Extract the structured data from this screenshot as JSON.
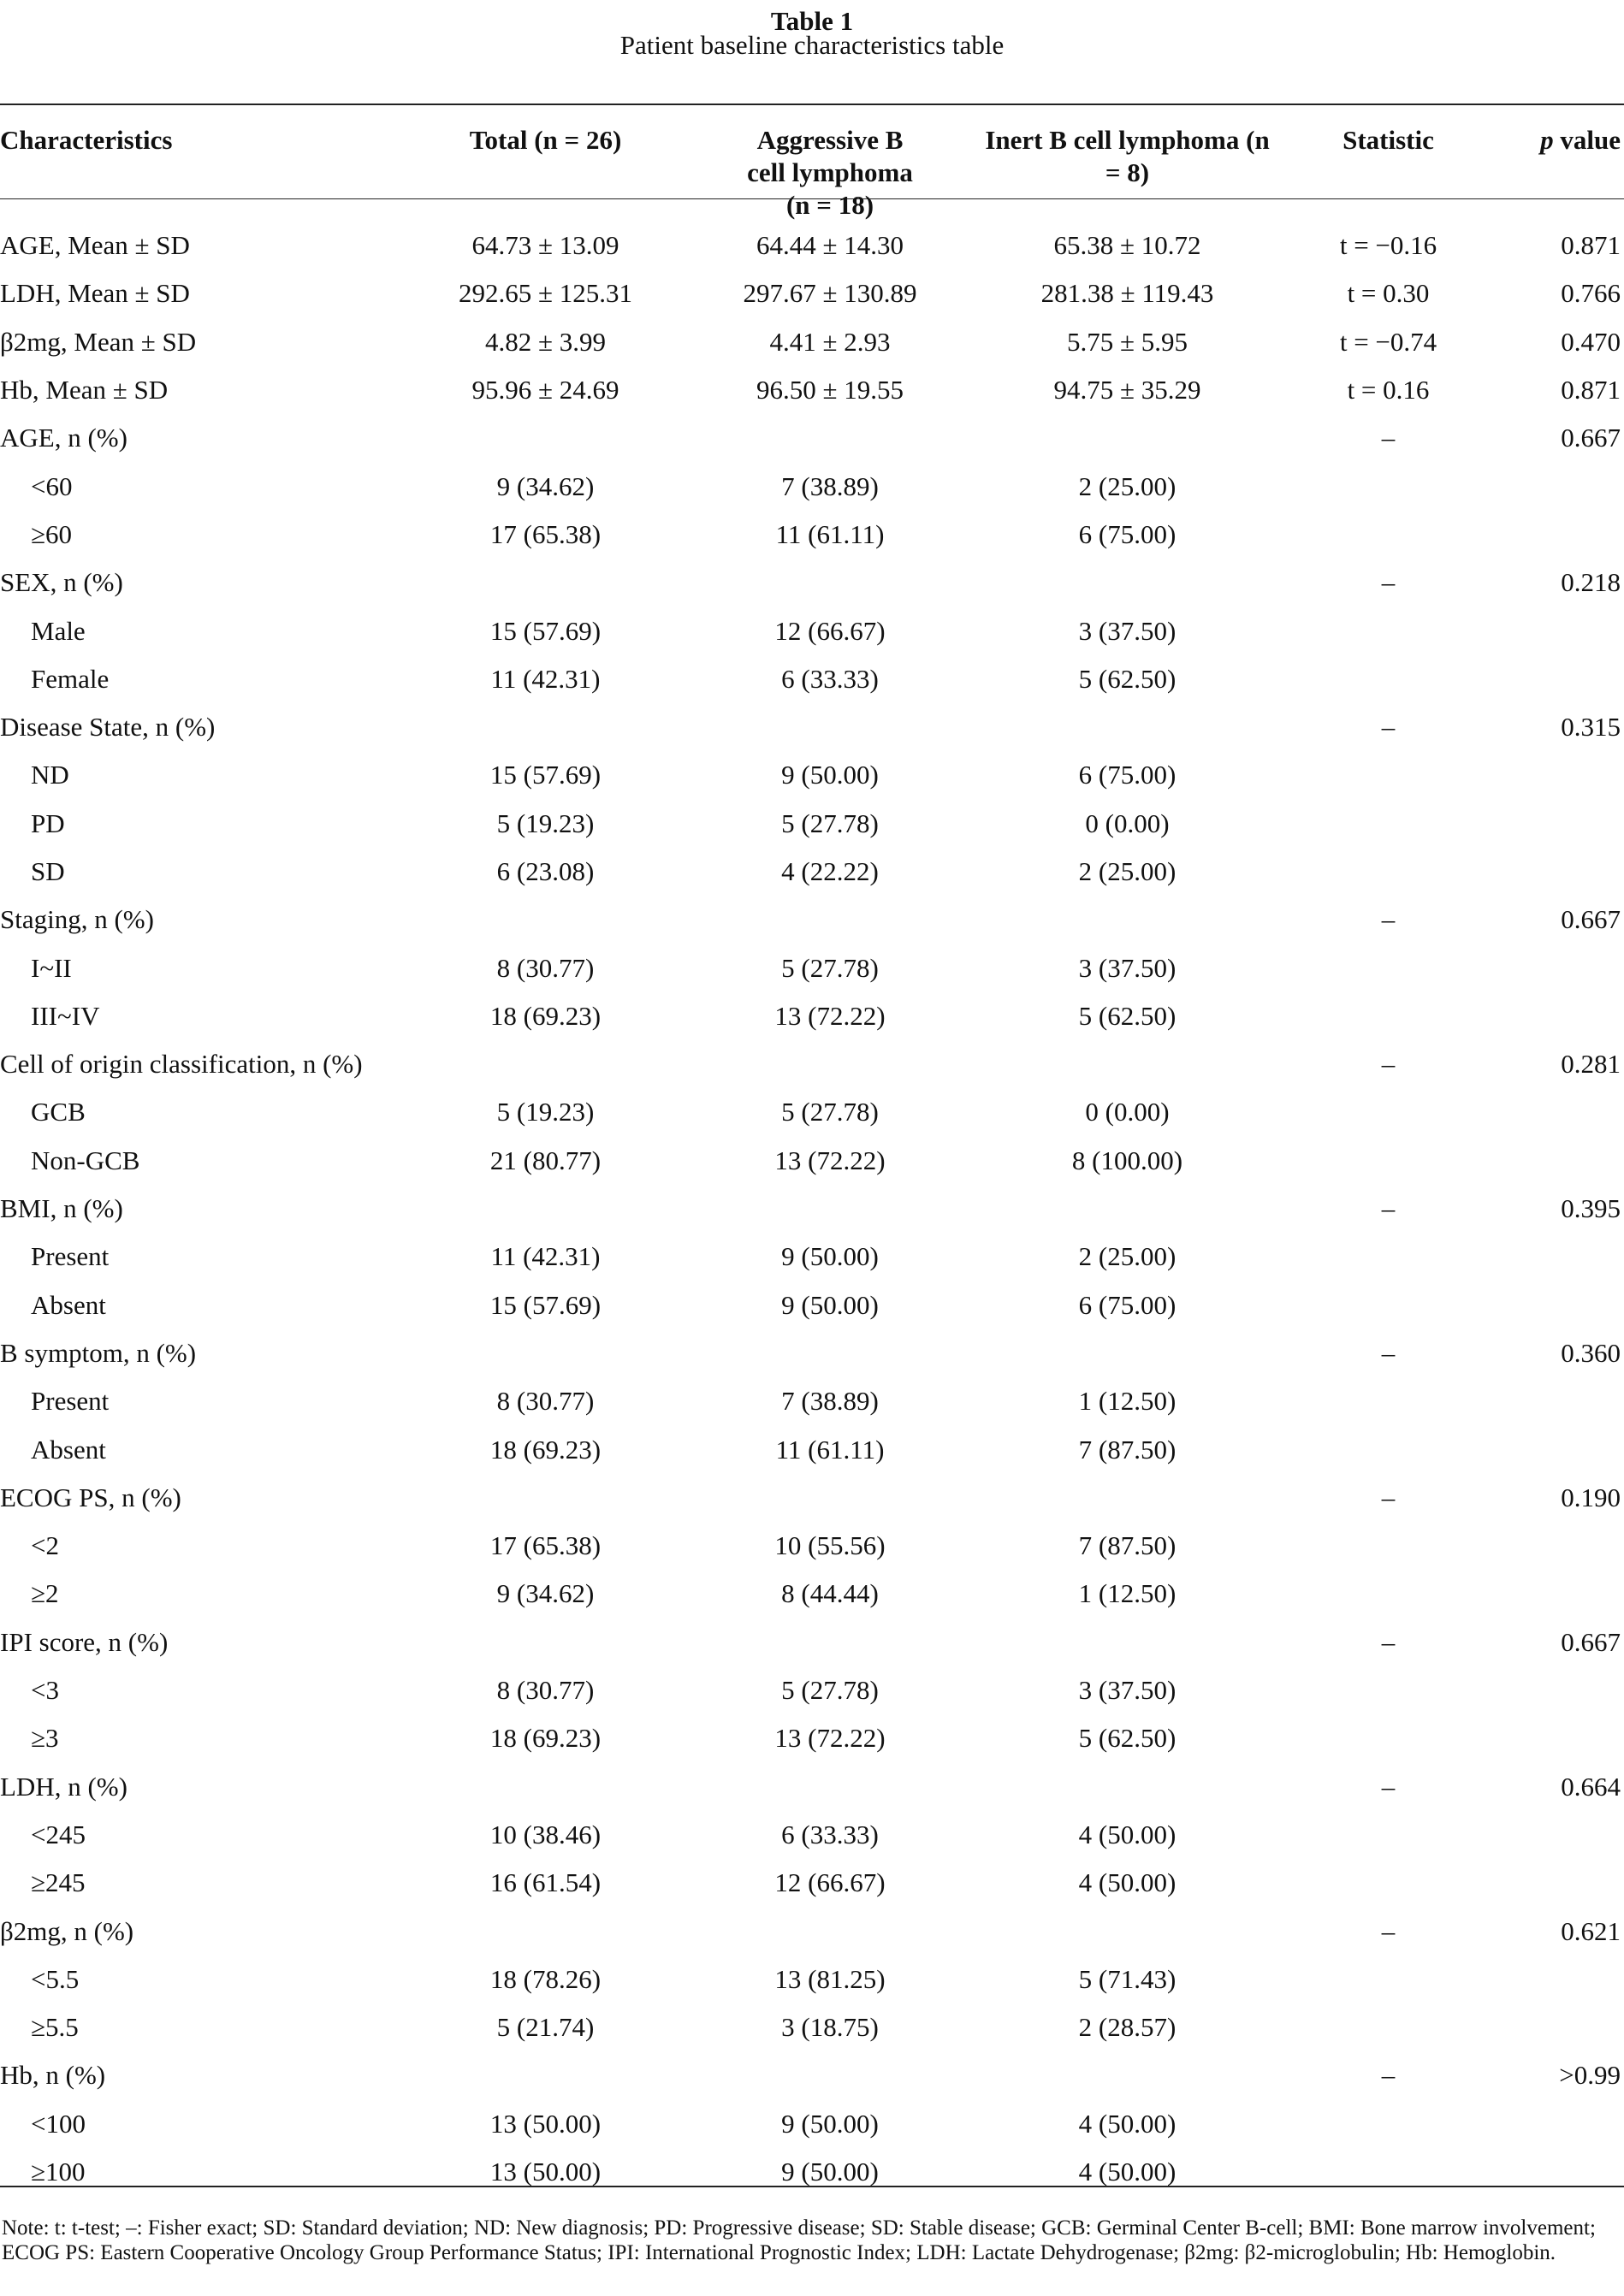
{
  "caption": {
    "number": "Table 1",
    "title": "Patient baseline characteristics table"
  },
  "headers": [
    "Characteristics",
    "Total (n = 26)",
    "Aggressive B cell lymphoma (n = 18)",
    "Inert B cell lymphoma (n = 8)",
    "Statistic",
    "p value"
  ],
  "rows": [
    {
      "label": "AGE, Mean ± SD",
      "indent": false,
      "total": "64.73 ± 13.09",
      "aggressive": "64.44 ± 14.30",
      "inert": "65.38 ± 10.72",
      "statistic": "t = −0.16",
      "p": "0.871"
    },
    {
      "label": "LDH, Mean ± SD",
      "indent": false,
      "total": "292.65 ± 125.31",
      "aggressive": "297.67 ± 130.89",
      "inert": "281.38 ± 119.43",
      "statistic": "t = 0.30",
      "p": "0.766"
    },
    {
      "label": "β2mg, Mean ± SD",
      "indent": false,
      "total": "4.82 ± 3.99",
      "aggressive": "4.41 ± 2.93",
      "inert": "5.75 ± 5.95",
      "statistic": "t = −0.74",
      "p": "0.470"
    },
    {
      "label": "Hb, Mean ± SD",
      "indent": false,
      "total": "95.96 ± 24.69",
      "aggressive": "96.50 ± 19.55",
      "inert": "94.75 ± 35.29",
      "statistic": "t = 0.16",
      "p": "0.871"
    },
    {
      "label": "AGE, n (%)",
      "indent": false,
      "total": "",
      "aggressive": "",
      "inert": "",
      "statistic": "–",
      "p": "0.667"
    },
    {
      "label": "<60",
      "indent": true,
      "total": "9 (34.62)",
      "aggressive": "7 (38.89)",
      "inert": "2 (25.00)",
      "statistic": "",
      "p": ""
    },
    {
      "label": "≥60",
      "indent": true,
      "total": "17 (65.38)",
      "aggressive": "11 (61.11)",
      "inert": "6 (75.00)",
      "statistic": "",
      "p": ""
    },
    {
      "label": "SEX, n (%)",
      "indent": false,
      "total": "",
      "aggressive": "",
      "inert": "",
      "statistic": "–",
      "p": "0.218"
    },
    {
      "label": "Male",
      "indent": true,
      "total": "15 (57.69)",
      "aggressive": "12 (66.67)",
      "inert": "3 (37.50)",
      "statistic": "",
      "p": ""
    },
    {
      "label": "Female",
      "indent": true,
      "total": "11 (42.31)",
      "aggressive": "6 (33.33)",
      "inert": "5 (62.50)",
      "statistic": "",
      "p": ""
    },
    {
      "label": "Disease State, n (%)",
      "indent": false,
      "total": "",
      "aggressive": "",
      "inert": "",
      "statistic": "–",
      "p": "0.315"
    },
    {
      "label": "ND",
      "indent": true,
      "total": "15 (57.69)",
      "aggressive": "9 (50.00)",
      "inert": "6 (75.00)",
      "statistic": "",
      "p": ""
    },
    {
      "label": "PD",
      "indent": true,
      "total": "5 (19.23)",
      "aggressive": "5 (27.78)",
      "inert": "0 (0.00)",
      "statistic": "",
      "p": ""
    },
    {
      "label": "SD",
      "indent": true,
      "total": "6 (23.08)",
      "aggressive": "4 (22.22)",
      "inert": "2 (25.00)",
      "statistic": "",
      "p": ""
    },
    {
      "label": "Staging, n (%)",
      "indent": false,
      "total": "",
      "aggressive": "",
      "inert": "",
      "statistic": "–",
      "p": "0.667"
    },
    {
      "label": "I~II",
      "indent": true,
      "total": "8 (30.77)",
      "aggressive": "5 (27.78)",
      "inert": "3 (37.50)",
      "statistic": "",
      "p": ""
    },
    {
      "label": "III~IV",
      "indent": true,
      "total": "18 (69.23)",
      "aggressive": "13 (72.22)",
      "inert": "5 (62.50)",
      "statistic": "",
      "p": ""
    },
    {
      "label": "Cell of origin classification, n (%)",
      "indent": false,
      "total": "",
      "aggressive": "",
      "inert": "",
      "statistic": "–",
      "p": "0.281"
    },
    {
      "label": "GCB",
      "indent": true,
      "total": "5 (19.23)",
      "aggressive": "5 (27.78)",
      "inert": "0 (0.00)",
      "statistic": "",
      "p": ""
    },
    {
      "label": "Non-GCB",
      "indent": true,
      "total": "21 (80.77)",
      "aggressive": "13 (72.22)",
      "inert": "8 (100.00)",
      "statistic": "",
      "p": ""
    },
    {
      "label": "BMI, n (%)",
      "indent": false,
      "total": "",
      "aggressive": "",
      "inert": "",
      "statistic": "–",
      "p": "0.395"
    },
    {
      "label": "Present",
      "indent": true,
      "total": "11 (42.31)",
      "aggressive": "9 (50.00)",
      "inert": "2 (25.00)",
      "statistic": "",
      "p": ""
    },
    {
      "label": "Absent",
      "indent": true,
      "total": "15 (57.69)",
      "aggressive": "9 (50.00)",
      "inert": "6 (75.00)",
      "statistic": "",
      "p": ""
    },
    {
      "label": "B symptom, n (%)",
      "indent": false,
      "total": "",
      "aggressive": "",
      "inert": "",
      "statistic": "–",
      "p": "0.360"
    },
    {
      "label": "Present",
      "indent": true,
      "total": "8 (30.77)",
      "aggressive": "7 (38.89)",
      "inert": "1 (12.50)",
      "statistic": "",
      "p": ""
    },
    {
      "label": "Absent",
      "indent": true,
      "total": "18 (69.23)",
      "aggressive": "11 (61.11)",
      "inert": "7 (87.50)",
      "statistic": "",
      "p": ""
    },
    {
      "label": "ECOG PS, n (%)",
      "indent": false,
      "total": "",
      "aggressive": "",
      "inert": "",
      "statistic": "–",
      "p": "0.190"
    },
    {
      "label": "<2",
      "indent": true,
      "total": "17 (65.38)",
      "aggressive": "10 (55.56)",
      "inert": "7 (87.50)",
      "statistic": "",
      "p": ""
    },
    {
      "label": "≥2",
      "indent": true,
      "total": "9 (34.62)",
      "aggressive": "8 (44.44)",
      "inert": "1 (12.50)",
      "statistic": "",
      "p": ""
    },
    {
      "label": "IPI score, n (%)",
      "indent": false,
      "total": "",
      "aggressive": "",
      "inert": "",
      "statistic": "–",
      "p": "0.667"
    },
    {
      "label": "<3",
      "indent": true,
      "total": "8 (30.77)",
      "aggressive": "5 (27.78)",
      "inert": "3 (37.50)",
      "statistic": "",
      "p": ""
    },
    {
      "label": "≥3",
      "indent": true,
      "total": "18 (69.23)",
      "aggressive": "13 (72.22)",
      "inert": "5 (62.50)",
      "statistic": "",
      "p": ""
    },
    {
      "label": "LDH, n (%)",
      "indent": false,
      "total": "",
      "aggressive": "",
      "inert": "",
      "statistic": "–",
      "p": "0.664"
    },
    {
      "label": "<245",
      "indent": true,
      "total": "10 (38.46)",
      "aggressive": "6 (33.33)",
      "inert": "4 (50.00)",
      "statistic": "",
      "p": ""
    },
    {
      "label": "≥245",
      "indent": true,
      "total": "16 (61.54)",
      "aggressive": "12 (66.67)",
      "inert": "4 (50.00)",
      "statistic": "",
      "p": ""
    },
    {
      "label": "β2mg, n (%)",
      "indent": false,
      "total": "",
      "aggressive": "",
      "inert": "",
      "statistic": "–",
      "p": "0.621"
    },
    {
      "label": "<5.5",
      "indent": true,
      "total": "18 (78.26)",
      "aggressive": "13 (81.25)",
      "inert": "5 (71.43)",
      "statistic": "",
      "p": ""
    },
    {
      "label": "≥5.5",
      "indent": true,
      "total": "5 (21.74)",
      "aggressive": "3 (18.75)",
      "inert": "2 (28.57)",
      "statistic": "",
      "p": ""
    },
    {
      "label": "Hb, n (%)",
      "indent": false,
      "total": "",
      "aggressive": "",
      "inert": "",
      "statistic": "–",
      "p": ">0.99"
    },
    {
      "label": "<100",
      "indent": true,
      "total": "13 (50.00)",
      "aggressive": "9 (50.00)",
      "inert": "4 (50.00)",
      "statistic": "",
      "p": ""
    },
    {
      "label": "≥100",
      "indent": true,
      "total": "13 (50.00)",
      "aggressive": "9 (50.00)",
      "inert": "4 (50.00)",
      "statistic": "",
      "p": ""
    }
  ],
  "note": "Note: t: t-test; –: Fisher exact; SD: Standard deviation; ND: New diagnosis; PD: Progressive disease; SD: Stable disease; GCB: Germinal Center B-cell; BMI: Bone marrow involvement; ECOG PS: Eastern Cooperative Oncology Group Performance Status; IPI: International Prognostic Index; LDH: Lactate Dehydrogenase; β2mg: β2-microglobulin; Hb: Hemoglobin."
}
